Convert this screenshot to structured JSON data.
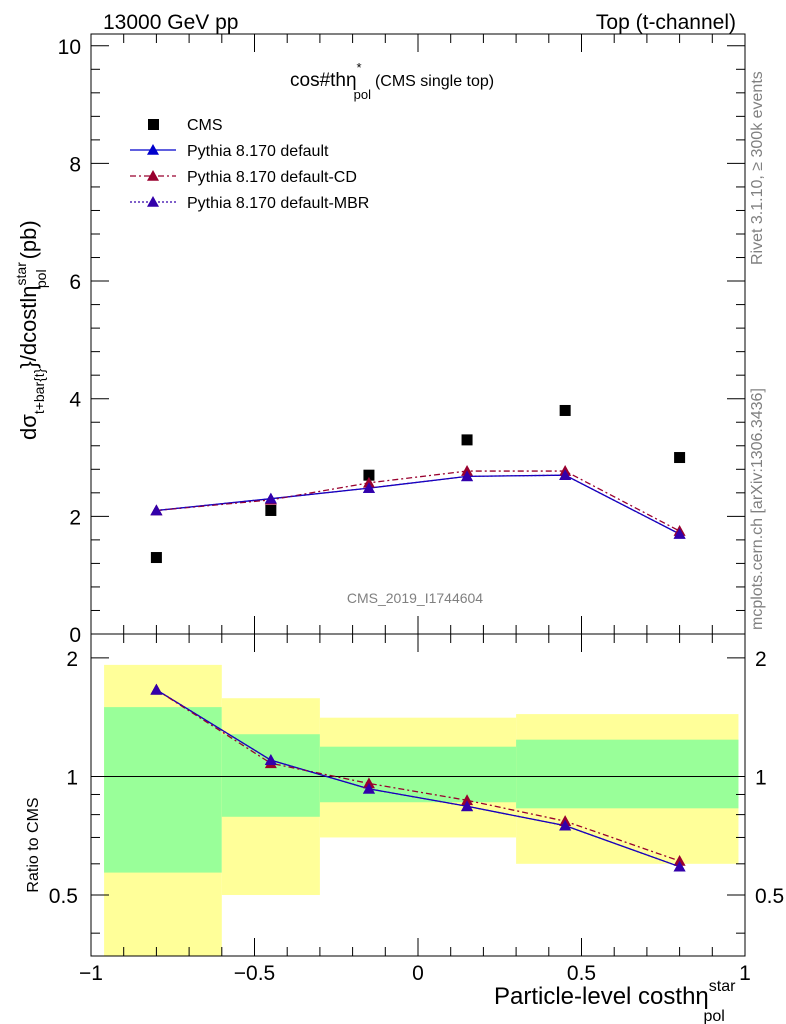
{
  "header": {
    "left": "13000 GeV pp",
    "right": "Top (t-channel)"
  },
  "plot_title": {
    "main": "cos#thη",
    "sup": "*",
    "sub": "pol",
    "tail": "(CMS single top)"
  },
  "side_text": {
    "rivet": "Rivet 3.1.10, ≥ 300k events",
    "mcplots": "mcplots.cern.ch [arXiv:1306.3436]"
  },
  "watermark": "CMS_2019_I1744604",
  "colors": {
    "cms": "#000000",
    "default": "#0000cc",
    "cd": "#99002e",
    "mbr": "#3300aa",
    "band_inner": "#99ff99",
    "band_outer": "#ffff99"
  },
  "chart_data": [
    {
      "type": "scatter",
      "panel": "main",
      "ylabel": {
        "pre": "dσ",
        "sub": "t+bar{t}",
        "mid": "}/dcostlη",
        "sup": "star",
        "sub2": "pol",
        "unit": "(pb)"
      },
      "xlim": [
        -1,
        1
      ],
      "ylim": [
        0,
        10.2
      ],
      "yticks": [
        0,
        2,
        4,
        6,
        8,
        10
      ],
      "legend_position": "top-left",
      "series": [
        {
          "name": "CMS",
          "x": [
            -0.8,
            -0.45,
            -0.15,
            0.15,
            0.45,
            0.8
          ],
          "y": [
            1.3,
            2.1,
            2.7,
            3.3,
            3.8,
            3.0
          ]
        },
        {
          "name": "Pythia 8.170 default",
          "x": [
            -0.8,
            -0.45,
            -0.15,
            0.15,
            0.45,
            0.8
          ],
          "y": [
            2.1,
            2.3,
            2.48,
            2.68,
            2.7,
            1.7
          ]
        },
        {
          "name": "Pythia 8.170 default-CD",
          "x": [
            -0.8,
            -0.45,
            -0.15,
            0.15,
            0.45,
            0.8
          ],
          "y": [
            2.1,
            2.28,
            2.57,
            2.77,
            2.77,
            1.75
          ]
        },
        {
          "name": "Pythia 8.170 default-MBR",
          "x": [
            -0.8,
            -0.45,
            -0.15,
            0.15,
            0.45,
            0.8
          ],
          "y": [
            2.1,
            2.3,
            2.48,
            2.68,
            2.7,
            1.7
          ]
        }
      ]
    },
    {
      "type": "line",
      "panel": "ratio",
      "ylabel": "Ratio to CMS",
      "xlabel": {
        "main": "Particle-level costhη",
        "sup": "star",
        "sub": "pol"
      },
      "xlim": [
        -1,
        1
      ],
      "ylim": [
        0.35,
        2.3
      ],
      "log_scale_y": true,
      "yticks": [
        0.5,
        1,
        2
      ],
      "xticks": [
        -1,
        -0.5,
        0,
        0.5,
        1
      ],
      "xtick_labels": [
        "−1",
        "−0.5",
        "0",
        "0.5",
        "1"
      ],
      "bins": [
        {
          "lo": -0.96,
          "hi": -0.6,
          "inner": [
            0.57,
            1.5
          ],
          "outer": [
            0.35,
            1.92
          ]
        },
        {
          "lo": -0.6,
          "hi": -0.3,
          "inner": [
            0.79,
            1.28
          ],
          "outer": [
            0.5,
            1.58
          ]
        },
        {
          "lo": -0.3,
          "hi": 0.3,
          "inner": [
            0.86,
            1.19
          ],
          "outer": [
            0.7,
            1.41
          ]
        },
        {
          "lo": 0.3,
          "hi": 0.98,
          "inner": [
            0.83,
            1.24
          ],
          "outer": [
            0.6,
            1.44
          ]
        }
      ],
      "series": [
        {
          "name": "Pythia 8.170 default",
          "x": [
            -0.8,
            -0.45,
            -0.15,
            0.15,
            0.45,
            0.8
          ],
          "y": [
            1.66,
            1.1,
            0.93,
            0.84,
            0.75,
            0.59
          ]
        },
        {
          "name": "Pythia 8.170 default-CD",
          "x": [
            -0.8,
            -0.45,
            -0.15,
            0.15,
            0.45,
            0.8
          ],
          "y": [
            1.66,
            1.08,
            0.96,
            0.87,
            0.77,
            0.61
          ]
        },
        {
          "name": "Pythia 8.170 default-MBR",
          "x": [
            -0.8,
            -0.45,
            -0.15,
            0.15,
            0.45,
            0.8
          ],
          "y": [
            1.66,
            1.1,
            0.93,
            0.84,
            0.75,
            0.59
          ]
        }
      ]
    }
  ]
}
